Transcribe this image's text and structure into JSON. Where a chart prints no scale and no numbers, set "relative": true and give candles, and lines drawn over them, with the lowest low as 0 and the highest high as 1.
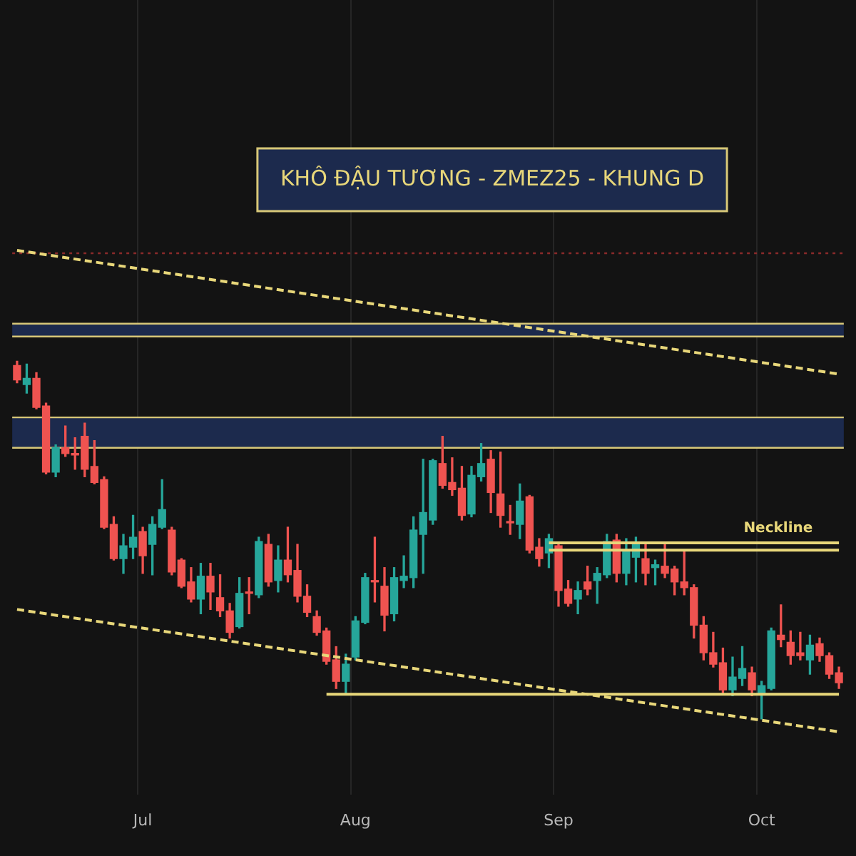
{
  "chart_data": {
    "type": "candlestick",
    "title": "KHÔ ĐẬU TƯƠNG - ZMEZ25 - KHUNG D",
    "relative": true,
    "grid": "x",
    "legend": false,
    "categories": [
      null,
      null,
      null,
      null,
      null,
      null,
      null,
      null,
      null,
      null,
      null,
      null,
      null,
      "Jul",
      null,
      null,
      null,
      null,
      null,
      null,
      null,
      null,
      null,
      null,
      null,
      null,
      null,
      null,
      null,
      null,
      null,
      null,
      null,
      null,
      null,
      "Aug",
      null,
      null,
      null,
      null,
      null,
      null,
      null,
      null,
      null,
      null,
      null,
      null,
      null,
      null,
      null,
      null,
      null,
      null,
      null,
      null,
      "Sep",
      null,
      null,
      null,
      null,
      null,
      null,
      null,
      null,
      null,
      null,
      null,
      null,
      null,
      null,
      null,
      null,
      null,
      null,
      null,
      null,
      "Oct",
      null,
      null,
      null,
      null,
      null,
      null,
      null,
      null
    ],
    "ohlc": [
      [
        0.988,
        1,
        0.94,
        0.948
      ],
      [
        0.935,
        0.992,
        0.911,
        0.952
      ],
      [
        0.952,
        0.968,
        0.867,
        0.871
      ],
      [
        0.875,
        0.883,
        0.685,
        0.69
      ],
      [
        0.69,
        0.766,
        0.677,
        0.758
      ],
      [
        0.758,
        0.819,
        0.734,
        0.742
      ],
      [
        0.742,
        0.786,
        0.698,
        0.738
      ],
      [
        0.79,
        0.827,
        0.677,
        0.698
      ],
      [
        0.706,
        0.778,
        0.657,
        0.661
      ],
      [
        0.669,
        0.677,
        0.532,
        0.536
      ],
      [
        0.544,
        0.565,
        0.444,
        0.448
      ],
      [
        0.448,
        0.516,
        0.407,
        0.484
      ],
      [
        0.48,
        0.569,
        0.448,
        0.508
      ],
      [
        0.524,
        0.536,
        0.407,
        0.456
      ],
      [
        0.488,
        0.565,
        0.403,
        0.544
      ],
      [
        0.536,
        0.669,
        0.532,
        0.585
      ],
      [
        0.528,
        0.536,
        0.403,
        0.411
      ],
      [
        0.444,
        0.448,
        0.367,
        0.371
      ],
      [
        0.383,
        0.423,
        0.327,
        0.335
      ],
      [
        0.335,
        0.435,
        0.294,
        0.399
      ],
      [
        0.399,
        0.435,
        0.306,
        0.355
      ],
      [
        0.339,
        0.403,
        0.286,
        0.302
      ],
      [
        0.302,
        0.323,
        0.226,
        0.242
      ],
      [
        0.258,
        0.395,
        0.254,
        0.351
      ],
      [
        0.355,
        0.395,
        0.294,
        0.351
      ],
      [
        0.347,
        0.508,
        0.339,
        0.496
      ],
      [
        0.488,
        0.516,
        0.371,
        0.383
      ],
      [
        0.387,
        0.484,
        0.355,
        0.444
      ],
      [
        0.444,
        0.536,
        0.383,
        0.403
      ],
      [
        0.415,
        0.488,
        0.327,
        0.343
      ],
      [
        0.343,
        0.375,
        0.286,
        0.298
      ],
      [
        0.286,
        0.302,
        0.234,
        0.242
      ],
      [
        0.246,
        0.254,
        0.153,
        0.161
      ],
      [
        0.165,
        0.202,
        0.085,
        0.105
      ],
      [
        0.105,
        0.181,
        0.073,
        0.153
      ],
      [
        0.173,
        0.286,
        0.165,
        0.274
      ],
      [
        0.27,
        0.407,
        0.266,
        0.395
      ],
      [
        0.387,
        0.508,
        0.327,
        0.383
      ],
      [
        0.371,
        0.423,
        0.246,
        0.29
      ],
      [
        0.294,
        0.423,
        0.274,
        0.395
      ],
      [
        0.387,
        0.456,
        0.367,
        0.399
      ],
      [
        0.395,
        0.565,
        0.367,
        0.528
      ],
      [
        0.516,
        0.726,
        0.407,
        0.577
      ],
      [
        0.556,
        0.726,
        0.544,
        0.722
      ],
      [
        0.714,
        0.79,
        0.645,
        0.653
      ],
      [
        0.661,
        0.73,
        0.625,
        0.641
      ],
      [
        0.645,
        0.706,
        0.556,
        0.569
      ],
      [
        0.573,
        0.706,
        0.565,
        0.681
      ],
      [
        0.677,
        0.77,
        0.665,
        0.714
      ],
      [
        0.726,
        0.75,
        0.577,
        0.633
      ],
      [
        0.629,
        0.746,
        0.536,
        0.569
      ],
      [
        0.552,
        0.597,
        0.516,
        0.548
      ],
      [
        0.544,
        0.657,
        0.504,
        0.609
      ],
      [
        0.621,
        0.625,
        0.464,
        0.472
      ],
      [
        0.48,
        0.504,
        0.427,
        0.448
      ],
      [
        0.464,
        0.516,
        0.423,
        0.504
      ],
      [
        0.484,
        0.492,
        0.315,
        0.359
      ],
      [
        0.363,
        0.387,
        0.315,
        0.323
      ],
      [
        0.335,
        0.383,
        0.294,
        0.359
      ],
      [
        0.383,
        0.427,
        0.347,
        0.363
      ],
      [
        0.387,
        0.423,
        0.323,
        0.407
      ],
      [
        0.403,
        0.516,
        0.395,
        0.496
      ],
      [
        0.5,
        0.516,
        0.383,
        0.407
      ],
      [
        0.407,
        0.504,
        0.375,
        0.468
      ],
      [
        0.452,
        0.508,
        0.383,
        0.488
      ],
      [
        0.448,
        0.488,
        0.375,
        0.407
      ],
      [
        0.423,
        0.444,
        0.375,
        0.431
      ],
      [
        0.427,
        0.488,
        0.395,
        0.407
      ],
      [
        0.419,
        0.427,
        0.347,
        0.383
      ],
      [
        0.383,
        0.468,
        0.347,
        0.367
      ],
      [
        0.367,
        0.375,
        0.226,
        0.262
      ],
      [
        0.262,
        0.286,
        0.165,
        0.185
      ],
      [
        0.185,
        0.242,
        0.145,
        0.153
      ],
      [
        0.157,
        0.198,
        0.073,
        0.081
      ],
      [
        0.081,
        0.173,
        0.065,
        0.117
      ],
      [
        0.113,
        0.202,
        0.093,
        0.141
      ],
      [
        0.129,
        0.145,
        0.065,
        0.081
      ],
      [
        0.073,
        0.105,
        0,
        0.093
      ],
      [
        0.085,
        0.254,
        0.081,
        0.246
      ],
      [
        0.234,
        0.319,
        0.202,
        0.222
      ],
      [
        0.214,
        0.246,
        0.153,
        0.177
      ],
      [
        0.185,
        0.242,
        0.165,
        0.177
      ],
      [
        0.165,
        0.234,
        0.125,
        0.206
      ],
      [
        0.21,
        0.226,
        0.161,
        0.177
      ],
      [
        0.177,
        0.185,
        0.113,
        0.125
      ],
      [
        0.129,
        0.145,
        0.085,
        0.101
      ]
    ],
    "colors": [
      "#ef5350",
      "#26a69a",
      "#ef5350",
      "#ef5350",
      "#26a69a",
      "#ef5350",
      "#ef5350",
      "#ef5350",
      "#ef5350",
      "#ef5350",
      "#ef5350",
      "#26a69a",
      "#26a69a",
      "#ef5350",
      "#26a69a",
      "#26a69a",
      "#ef5350",
      "#ef5350",
      "#ef5350",
      "#26a69a",
      "#ef5350",
      "#ef5350",
      "#ef5350",
      "#26a69a",
      "#ef5350",
      "#26a69a",
      "#ef5350",
      "#26a69a",
      "#ef5350",
      "#ef5350",
      "#ef5350",
      "#ef5350",
      "#ef5350",
      "#ef5350",
      "#26a69a",
      "#26a69a",
      "#26a69a",
      "#ef5350",
      "#ef5350",
      "#26a69a",
      "#26a69a",
      "#26a69a",
      "#26a69a",
      "#26a69a",
      "#ef5350",
      "#ef5350",
      "#ef5350",
      "#26a69a",
      "#26a69a",
      "#ef5350",
      "#ef5350",
      "#ef5350",
      "#26a69a",
      "#ef5350",
      "#ef5350",
      "#26a69a",
      "#ef5350",
      "#ef5350",
      "#26a69a",
      "#ef5350",
      "#26a69a",
      "#26a69a",
      "#ef5350",
      "#26a69a",
      "#26a69a",
      "#ef5350",
      "#26a69a",
      "#ef5350",
      "#ef5350",
      "#ef5350",
      "#ef5350",
      "#ef5350",
      "#ef5350",
      "#ef5350",
      "#26a69a",
      "#26a69a",
      "#ef5350",
      "#26a69a",
      "#26a69a",
      "#ef5350",
      "#ef5350",
      "#ef5350",
      "#26a69a",
      "#ef5350",
      "#ef5350",
      "#ef5350"
    ],
    "series": [
      {
        "type": "line",
        "color": "#e8d77a",
        "line_style": "dashed",
        "values": [
          1.31,
          null,
          null,
          null,
          null,
          null,
          null,
          null,
          null,
          null,
          null,
          null,
          null,
          null,
          null,
          null,
          null,
          null,
          null,
          null,
          null,
          null,
          null,
          null,
          null,
          null,
          null,
          null,
          null,
          null,
          null,
          null,
          null,
          null,
          null,
          null,
          null,
          null,
          null,
          null,
          null,
          null,
          null,
          null,
          null,
          null,
          null,
          null,
          null,
          null,
          null,
          null,
          null,
          null,
          null,
          null,
          null,
          null,
          null,
          null,
          null,
          null,
          null,
          null,
          null,
          null,
          null,
          null,
          null,
          null,
          null,
          null,
          null,
          null,
          null,
          null,
          null,
          null,
          null,
          null,
          null,
          null,
          null,
          null,
          null,
          0.964
        ]
      },
      {
        "type": "line",
        "color": "#e8d77a",
        "line_style": "dashed",
        "values": [
          0.306,
          null,
          null,
          null,
          null,
          null,
          null,
          null,
          null,
          null,
          null,
          null,
          null,
          null,
          null,
          null,
          null,
          null,
          null,
          null,
          null,
          null,
          null,
          null,
          null,
          null,
          null,
          null,
          null,
          null,
          null,
          null,
          null,
          null,
          null,
          null,
          null,
          null,
          null,
          null,
          null,
          null,
          null,
          null,
          null,
          null,
          null,
          null,
          null,
          null,
          null,
          null,
          null,
          null,
          null,
          null,
          null,
          null,
          null,
          null,
          null,
          null,
          null,
          null,
          null,
          null,
          null,
          null,
          null,
          null,
          null,
          null,
          null,
          null,
          null,
          null,
          null,
          null,
          null,
          null,
          null,
          null,
          null,
          null,
          null,
          -0.036
        ]
      },
      {
        "type": "line",
        "color": "#e8d77a",
        "line_style": "solid",
        "values": [
          null,
          null,
          null,
          null,
          null,
          null,
          null,
          null,
          null,
          null,
          null,
          null,
          null,
          null,
          null,
          null,
          null,
          null,
          null,
          null,
          null,
          null,
          null,
          null,
          null,
          null,
          null,
          null,
          null,
          null,
          null,
          null,
          null,
          null,
          null,
          null,
          null,
          null,
          null,
          null,
          null,
          null,
          null,
          null,
          null,
          null,
          null,
          null,
          null,
          null,
          null,
          null,
          null,
          null,
          null,
          0.492,
          0.492,
          0.492,
          0.492,
          0.492,
          0.492,
          0.492,
          0.492,
          0.492,
          0.492,
          0.492,
          0.492,
          0.492,
          0.492,
          0.492,
          0.492,
          0.492,
          0.492,
          0.492,
          0.492,
          0.492,
          0.492,
          0.492,
          0.492,
          0.492,
          0.492,
          0.492,
          0.492,
          0.492,
          0.492,
          0.492
        ]
      },
      {
        "type": "line",
        "color": "#e8d77a",
        "line_style": "solid",
        "values": [
          null,
          null,
          null,
          null,
          null,
          null,
          null,
          null,
          null,
          null,
          null,
          null,
          null,
          null,
          null,
          null,
          null,
          null,
          null,
          null,
          null,
          null,
          null,
          null,
          null,
          null,
          null,
          null,
          null,
          null,
          null,
          null,
          null,
          null,
          null,
          null,
          null,
          null,
          null,
          null,
          null,
          null,
          null,
          null,
          null,
          null,
          null,
          null,
          null,
          null,
          null,
          null,
          null,
          null,
          null,
          0.472,
          0.472,
          0.472,
          0.472,
          0.472,
          0.472,
          0.472,
          0.472,
          0.472,
          0.472,
          0.472,
          0.472,
          0.472,
          0.472,
          0.472,
          0.472,
          0.472,
          0.472,
          0.472,
          0.472,
          0.472,
          0.472,
          0.472,
          0.472,
          0.472,
          0.472,
          0.472,
          0.472,
          0.472,
          0.472,
          0.472
        ]
      },
      {
        "type": "line",
        "color": "#e8d77a",
        "line_style": "solid",
        "values": [
          null,
          null,
          null,
          null,
          null,
          null,
          null,
          null,
          null,
          null,
          null,
          null,
          null,
          null,
          null,
          null,
          null,
          null,
          null,
          null,
          null,
          null,
          null,
          null,
          null,
          null,
          null,
          null,
          null,
          null,
          null,
          null,
          0.069,
          0.069,
          0.069,
          0.069,
          0.069,
          0.069,
          0.069,
          0.069,
          0.069,
          0.069,
          0.069,
          0.069,
          0.069,
          0.069,
          0.069,
          0.069,
          0.069,
          0.069,
          0.069,
          0.069,
          0.069,
          0.069,
          0.069,
          0.069,
          0.069,
          0.069,
          0.069,
          0.069,
          0.069,
          0.069,
          0.069,
          0.069,
          0.069,
          0.069,
          0.069,
          0.069,
          0.069,
          0.069,
          0.069,
          0.069,
          0.069,
          0.069,
          0.069,
          0.069,
          0.069,
          0.069,
          0.069,
          0.069,
          0.069,
          0.069,
          0.069,
          0.069,
          0.069,
          0.069
        ]
      }
    ],
    "bands": [
      {
        "axis": "y",
        "from": 1.069,
        "to": 1.105,
        "color": "#1c2a4d"
      },
      {
        "axis": "y",
        "from": 0.758,
        "to": 0.843,
        "color": "#1c2a4d"
      }
    ],
    "ref_lines": [
      {
        "axis": "y",
        "value": 1.302,
        "color": "#8a2a2a",
        "line_style": "dotted"
      },
      {
        "axis": "y",
        "value": 1.105,
        "color": "#d8c878",
        "line_style": "solid"
      },
      {
        "axis": "y",
        "value": 1.069,
        "color": "#d8c878",
        "line_style": "solid"
      },
      {
        "axis": "y",
        "value": 0.843,
        "color": "#d8c878",
        "line_style": "solid"
      },
      {
        "axis": "y",
        "value": 0.758,
        "color": "#d8c878",
        "line_style": "solid"
      }
    ],
    "annotations": [
      "Neckline"
    ]
  }
}
